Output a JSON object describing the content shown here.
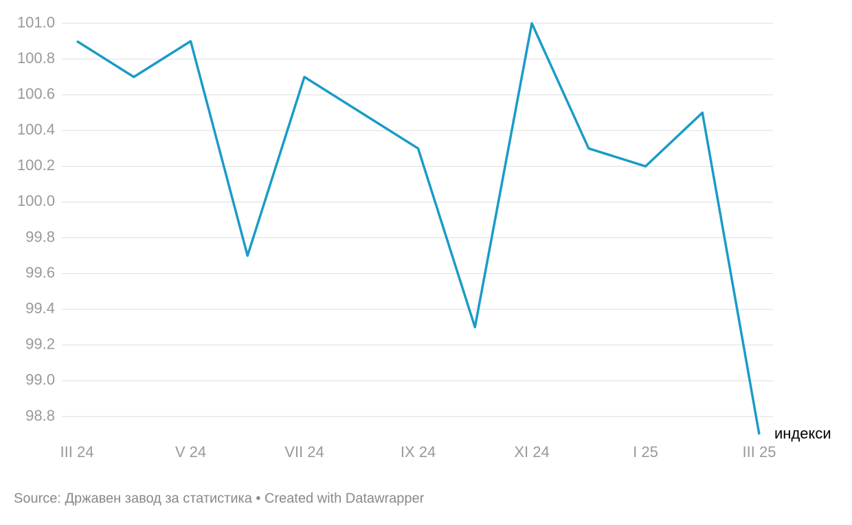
{
  "chart_data": {
    "type": "line",
    "categories": [
      "III 24",
      null,
      "V 24",
      null,
      "VII 24",
      null,
      "IX 24",
      null,
      "XI 24",
      null,
      "I 25",
      null,
      "III 25"
    ],
    "series": [
      {
        "name": "индекси",
        "color": "#1a9bc7",
        "values": [
          100.9,
          100.7,
          100.9,
          99.7,
          100.7,
          100.5,
          100.3,
          99.3,
          101.0,
          100.3,
          100.2,
          100.5,
          98.7
        ]
      }
    ],
    "ylim": [
      98.7,
      101.0
    ],
    "yticks": [
      {
        "value": 99,
        "label": "99.0"
      },
      99.2,
      99.4,
      99.6,
      99.8,
      {
        "value": 100,
        "label": "100.0"
      },
      100.2,
      100.4,
      100.6,
      100.8,
      {
        "value": 101,
        "label": "101.0"
      },
      98.8
    ],
    "grid": true,
    "footer": "Source: Државен завод за статистика • Created with Datawrapper"
  }
}
